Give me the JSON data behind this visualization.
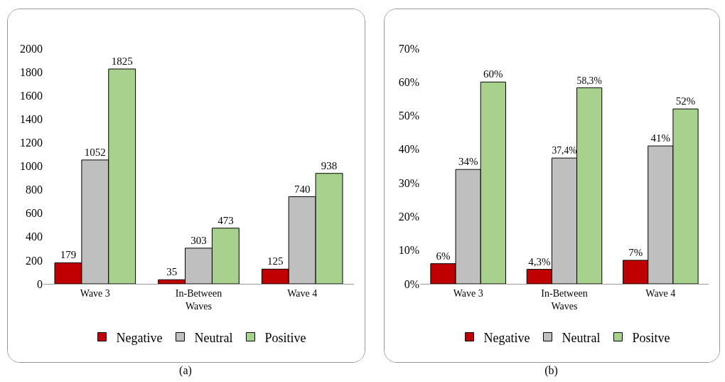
{
  "chart_data": [
    {
      "type": "bar",
      "categories": [
        "Wave 3",
        "In-Between Waves",
        "Wave 4"
      ],
      "series": [
        {
          "name": "Negative",
          "color": "#c00000",
          "values": [
            179,
            35,
            125
          ]
        },
        {
          "name": "Neutral",
          "color": "#bfbfbf",
          "values": [
            1052,
            303,
            740
          ]
        },
        {
          "name": "Positive",
          "color": "#a9d18e",
          "values": [
            1825,
            473,
            938
          ]
        }
      ],
      "ylim": [
        0,
        2000
      ],
      "yticks": [
        0,
        200,
        400,
        600,
        800,
        1000,
        1200,
        1400,
        1600,
        1800,
        2000
      ],
      "data_labels": true,
      "legend": "bottom",
      "annotations": [
        "(a)"
      ]
    },
    {
      "type": "bar",
      "categories": [
        "Wave 3",
        "In-Between Waves",
        "Wave 4"
      ],
      "series": [
        {
          "name": "Negative",
          "color": "#c00000",
          "values": [
            6,
            4.3,
            7
          ],
          "value_labels": [
            "6%",
            "4,3%",
            "7%"
          ]
        },
        {
          "name": "Neutral",
          "color": "#bfbfbf",
          "values": [
            34,
            37.4,
            41
          ],
          "value_labels": [
            "34%",
            "37,4%",
            "41%"
          ]
        },
        {
          "name": "Positve",
          "color": "#a9d18e",
          "values": [
            60,
            58.3,
            52
          ],
          "value_labels": [
            "60%",
            "58,3%",
            "52%"
          ]
        }
      ],
      "ylim": [
        0,
        70
      ],
      "yticks": [
        {
          "value": 0,
          "label": "0%"
        },
        {
          "value": 10,
          "label": "10%"
        },
        {
          "value": 20,
          "label": "20%"
        },
        {
          "value": 30,
          "label": "30%"
        },
        {
          "value": 40,
          "label": "40%"
        },
        {
          "value": 50,
          "label": "50%"
        },
        {
          "value": 60,
          "label": "60%"
        },
        {
          "value": 70,
          "label": "70%"
        }
      ],
      "legend": "bottom",
      "annotations": [
        "(b)"
      ]
    }
  ]
}
